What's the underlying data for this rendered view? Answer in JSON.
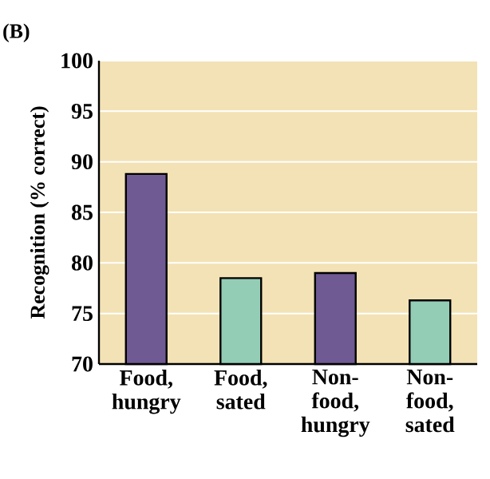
{
  "chart_data": {
    "type": "bar",
    "title": "(B)",
    "ylabel": "Recognition (% correct)",
    "categories": [
      "Food, hungry",
      "Food, sated",
      "Non-food, hungry",
      "Non-food, sated"
    ],
    "values": [
      88.8,
      78.5,
      79.0,
      76.3
    ],
    "colors": [
      "#6f5a93",
      "#93cdb6",
      "#6f5a93",
      "#93cdb6"
    ],
    "ylim": [
      70,
      100
    ],
    "yticks": [
      70,
      75,
      80,
      85,
      90,
      95,
      100
    ],
    "grid": "y"
  }
}
